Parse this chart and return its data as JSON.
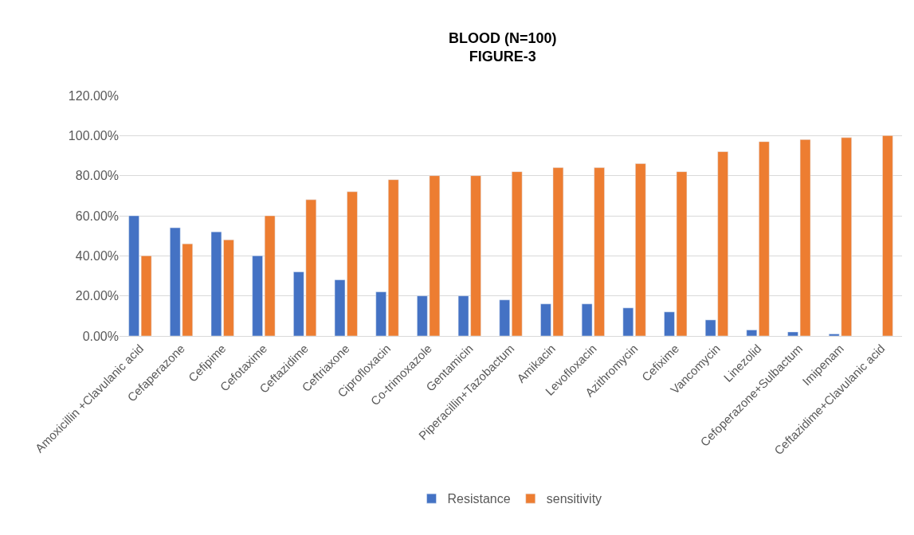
{
  "chart_data": {
    "type": "bar",
    "title": "BLOOD (N=100)",
    "subtitle": "FIGURE-3",
    "categories": [
      "Amoxicillin +Clavulanic acid",
      "Cefaperazone",
      "Cefipime",
      "Cefotaxime",
      "Ceftazidime",
      "Ceftriaxone",
      "Ciprofloxacin",
      "Co-trimoxazole",
      "Gentamicin",
      "Piperacillin+Tazobactum",
      "Amikacin",
      "Levofloxacin",
      "Azithromycin",
      "Cefixime",
      "Vancomycin",
      "Linezolid",
      "Cefoperazone+Sulbactum",
      "Imipenam",
      "Ceftazidime+Clavulanic acid"
    ],
    "series": [
      {
        "name": "Resistance",
        "color": "#4472c4",
        "values": [
          60,
          54,
          52,
          40,
          32,
          28,
          22,
          20,
          20,
          18,
          16,
          16,
          14,
          12,
          8,
          3,
          2,
          1,
          null
        ]
      },
      {
        "name": "sensitivity",
        "color": "#ed7d31",
        "values": [
          40,
          46,
          48,
          60,
          68,
          72,
          78,
          80,
          80,
          82,
          84,
          84,
          86,
          82,
          92,
          97,
          98,
          99,
          100
        ]
      }
    ],
    "ylim": [
      0,
      120
    ],
    "yticks": [
      {
        "value": 0,
        "label": "0.00%"
      },
      {
        "value": 20,
        "label": "20.00%"
      },
      {
        "value": 40,
        "label": "40.00%"
      },
      {
        "value": 60,
        "label": "60.00%"
      },
      {
        "value": 80,
        "label": "80.00%"
      },
      {
        "value": 100,
        "label": "100.00%"
      },
      {
        "value": 120,
        "label": "120.00%"
      }
    ],
    "grid": "y",
    "legend": "bottom"
  }
}
